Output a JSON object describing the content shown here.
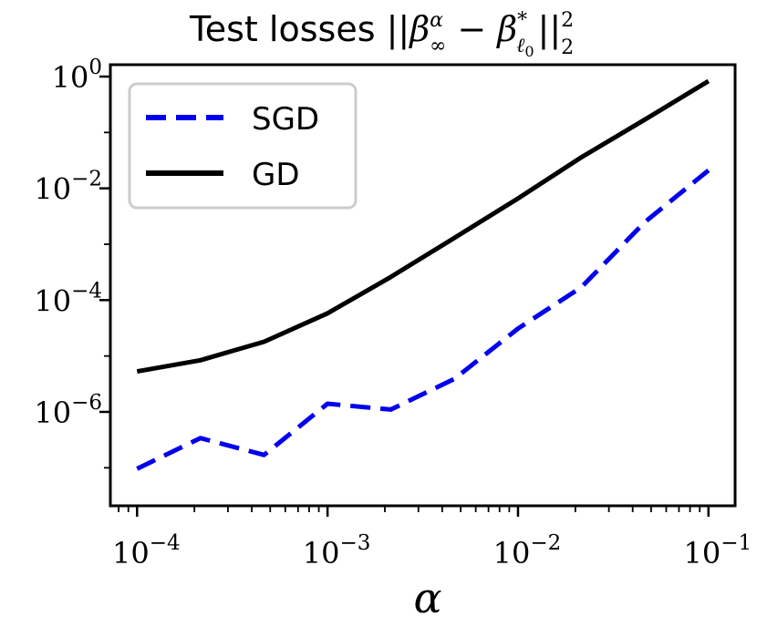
{
  "chart_data": {
    "type": "line",
    "title": "Test losses ||β∞α − βℓ0*||₂²",
    "title_parts": {
      "prefix": "Test losses ||",
      "beta1": "β",
      "beta1_sub": "∞",
      "beta1_sup": "α",
      "minus": "−",
      "beta2": "β",
      "beta2_sub": "ℓ",
      "beta2_sub_sub": "0",
      "beta2_sup": "*",
      "norm": "||",
      "norm_sub": "2",
      "norm_sup": "2"
    },
    "xlabel": "α",
    "ylabel": "",
    "xscale": "log",
    "yscale": "log",
    "xlim": [
      7.24e-05,
      0.138
    ],
    "ylim": [
      2.09e-08,
      1.63
    ],
    "xticks": [
      {
        "value": 0.0001,
        "base": "10",
        "exp": "−4"
      },
      {
        "value": 0.001,
        "base": "10",
        "exp": "−3"
      },
      {
        "value": 0.01,
        "base": "10",
        "exp": "−2"
      },
      {
        "value": 0.1,
        "base": "10",
        "exp": "−1"
      }
    ],
    "yticks": [
      {
        "value": 1e-06,
        "base": "10",
        "exp": "−6"
      },
      {
        "value": 0.0001,
        "base": "10",
        "exp": "−4"
      },
      {
        "value": 0.01,
        "base": "10",
        "exp": "−2"
      },
      {
        "value": 1,
        "base": "10",
        "exp": "0"
      }
    ],
    "grid": false,
    "legend_position": "top-left",
    "series": [
      {
        "name": "SGD",
        "color": "#0000ee",
        "style": "dashed",
        "x": [
          0.0001,
          0.000215,
          0.000464,
          0.001,
          0.00215,
          0.00464,
          0.01,
          0.0215,
          0.0464,
          0.1
        ],
        "y": [
          9.6e-08,
          3.4e-07,
          1.7e-07,
          1.4e-06,
          1.1e-06,
          3.9e-06,
          3.1e-05,
          0.00017,
          0.0025,
          0.021
        ]
      },
      {
        "name": "GD",
        "color": "#000000",
        "style": "solid",
        "x": [
          0.0001,
          0.000215,
          0.000464,
          0.001,
          0.00215,
          0.00464,
          0.01,
          0.0215,
          0.0464,
          0.1
        ],
        "y": [
          5.3e-06,
          8.4e-06,
          1.8e-05,
          5.8e-05,
          0.00026,
          0.0013,
          0.0066,
          0.036,
          0.17,
          0.83
        ]
      }
    ]
  }
}
